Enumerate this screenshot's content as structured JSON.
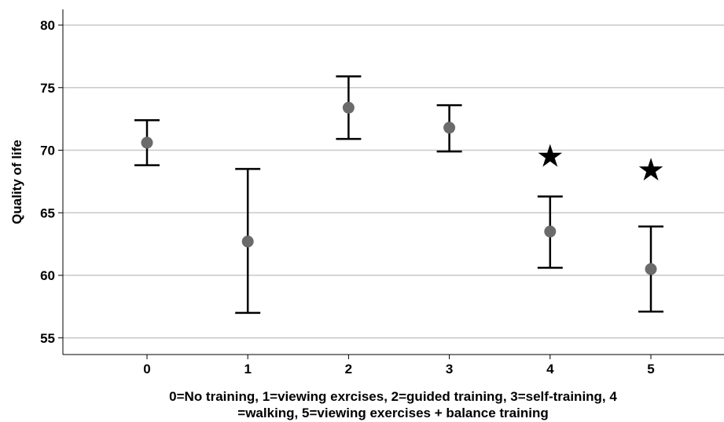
{
  "chart_data": {
    "type": "scatter",
    "subtype": "error-bar",
    "title": "",
    "ylabel": "Quality of life",
    "xlabel": "0=No training, 1=viewing exrcises, 2=guided training, 3=self-training, 4 =walking, 5=viewing exercises + balance training",
    "xlabel_lines": [
      "0=No training, 1=viewing exrcises, 2=guided training, 3=self-training, 4",
      "=walking, 5=viewing exercises + balance training"
    ],
    "categories": [
      "0",
      "1",
      "2",
      "3",
      "4",
      "5"
    ],
    "means": [
      70.6,
      62.7,
      73.4,
      71.8,
      63.5,
      60.5
    ],
    "lower": [
      68.8,
      57.0,
      70.9,
      69.9,
      60.6,
      57.1
    ],
    "upper": [
      72.4,
      68.5,
      75.9,
      73.6,
      66.3,
      63.9
    ],
    "ylim": [
      53.5,
      81.5
    ],
    "yticks": [
      55,
      60,
      65,
      70,
      75,
      80
    ],
    "grid": true,
    "annotations": [
      {
        "category": "4",
        "symbol": "★",
        "y": 69.5
      },
      {
        "category": "5",
        "symbol": "★",
        "y": 68.4
      }
    ],
    "colors": {
      "point": "#6b6b6b",
      "errorbar": "#000000",
      "grid": "#c8c8c8",
      "axis": "#000000"
    }
  }
}
